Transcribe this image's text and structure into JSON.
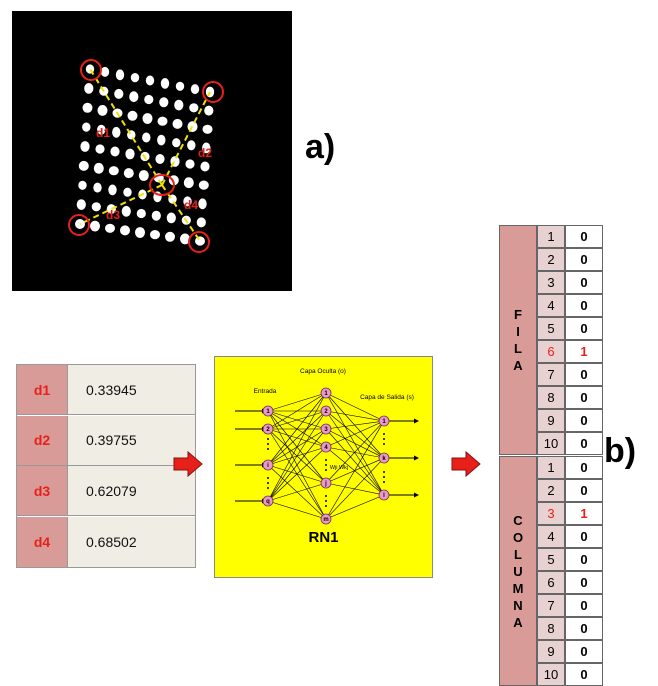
{
  "labels": {
    "a": "a)",
    "b": "b)"
  },
  "dots": {
    "distance_labels": [
      "d1",
      "d2",
      "d3",
      "d4"
    ]
  },
  "distances": [
    {
      "key": "d1",
      "value": "0.33945"
    },
    {
      "key": "d2",
      "value": "0.39755"
    },
    {
      "key": "d3",
      "value": "0.62079"
    },
    {
      "key": "d4",
      "value": "0.68502"
    }
  ],
  "network": {
    "title": "RN1",
    "hidden_layer": "Capa Oculta (o)",
    "input_layer": "Entrada",
    "output_layer": "Capa de Salida (s)",
    "input_nodes": [
      "1",
      "2",
      "i",
      "q"
    ],
    "hidden_nodes": [
      "1",
      "2",
      "3",
      "4",
      "j",
      "m"
    ],
    "output_nodes": [
      "1",
      "k",
      "l"
    ],
    "weights": "Wji Wkj"
  },
  "output": {
    "fila": {
      "label": "FILA",
      "rows": [
        {
          "n": "1",
          "v": "0"
        },
        {
          "n": "2",
          "v": "0"
        },
        {
          "n": "3",
          "v": "0"
        },
        {
          "n": "4",
          "v": "0"
        },
        {
          "n": "5",
          "v": "0"
        },
        {
          "n": "6",
          "v": "1",
          "hl": true
        },
        {
          "n": "7",
          "v": "0"
        },
        {
          "n": "8",
          "v": "0"
        },
        {
          "n": "9",
          "v": "0"
        },
        {
          "n": "10",
          "v": "0"
        }
      ]
    },
    "columna": {
      "label": "COLUMNA",
      "rows": [
        {
          "n": "1",
          "v": "0"
        },
        {
          "n": "2",
          "v": "0"
        },
        {
          "n": "3",
          "v": "1",
          "hl": true
        },
        {
          "n": "4",
          "v": "0"
        },
        {
          "n": "5",
          "v": "0"
        },
        {
          "n": "6",
          "v": "0"
        },
        {
          "n": "7",
          "v": "0"
        },
        {
          "n": "8",
          "v": "0"
        },
        {
          "n": "9",
          "v": "0"
        },
        {
          "n": "10",
          "v": "0"
        }
      ]
    }
  },
  "colors": {
    "accent_red": "#e8201a",
    "pink": "#d99b98",
    "yellow": "#ffff00"
  }
}
